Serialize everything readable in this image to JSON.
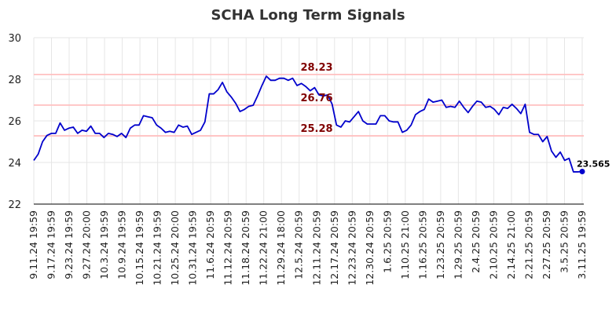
{
  "chart_data": {
    "type": "line",
    "title": "SCHA Long Term Signals",
    "xlabel": "",
    "ylabel": "",
    "ylim": [
      22,
      30
    ],
    "yticks": [
      22,
      24,
      26,
      28,
      30
    ],
    "grid": true,
    "xtick_labels": [
      "9.11.24 19:59",
      "9.17.24 19:59",
      "9.23.24 19:59",
      "9.27.24 20:00",
      "10.3.24 19:59",
      "10.9.24 19:59",
      "10.15.24 19:59",
      "10.21.24 19:59",
      "10.25.24 20:00",
      "10.31.24 19:59",
      "11.6.24 20:59",
      "11.12.24 20:59",
      "11.18.24 20:59",
      "11.22.24 21:00",
      "11.29.24 18:00",
      "12.5.24 20:59",
      "12.11.24 20:59",
      "12.17.24 20:59",
      "12.23.24 20:59",
      "12.30.24 20:59",
      "1.6.25 20:59",
      "1.10.25 21:00",
      "1.16.25 20:59",
      "1.23.25 20:59",
      "1.29.25 20:59",
      "2.4.25 20:59",
      "2.10.25 20:59",
      "2.14.25 21:00",
      "2.21.25 20:59",
      "2.27.25 20:59",
      "3.5.25 20:59",
      "3.11.25 19:59"
    ],
    "reference_lines": [
      {
        "value": 28.23,
        "label": "28.23",
        "line_color": "#ffc0c0",
        "label_color": "#800000"
      },
      {
        "value": 26.76,
        "label": "26.76",
        "line_color": "#ffc0c0",
        "label_color": "#800000"
      },
      {
        "value": 25.28,
        "label": "25.28",
        "line_color": "#ffc0c0",
        "label_color": "#800000"
      }
    ],
    "series": [
      {
        "color": "#0000cc",
        "values": [
          24.1,
          24.4,
          25.0,
          25.3,
          25.4,
          25.4,
          25.9,
          25.55,
          25.65,
          25.7,
          25.4,
          25.55,
          25.5,
          25.75,
          25.4,
          25.4,
          25.2,
          25.4,
          25.35,
          25.25,
          25.4,
          25.2,
          25.65,
          25.8,
          25.8,
          26.25,
          26.2,
          26.15,
          25.8,
          25.65,
          25.45,
          25.5,
          25.45,
          25.8,
          25.7,
          25.75,
          25.35,
          25.45,
          25.55,
          25.95,
          27.3,
          27.3,
          27.5,
          27.85,
          27.4,
          27.15,
          26.85,
          26.45,
          26.55,
          26.7,
          26.75,
          27.2,
          27.7,
          28.15,
          27.95,
          27.95,
          28.05,
          28.05,
          27.95,
          28.05,
          27.7,
          27.8,
          27.65,
          27.45,
          27.6,
          27.25,
          27.2,
          27.25,
          26.8,
          25.8,
          25.7,
          26.0,
          25.95,
          26.2,
          26.45,
          26.0,
          25.85,
          25.85,
          25.85,
          26.25,
          26.25,
          26.0,
          25.95,
          25.95,
          25.45,
          25.55,
          25.8,
          26.3,
          26.45,
          26.55,
          27.05,
          26.9,
          26.95,
          27.0,
          26.65,
          26.7,
          26.65,
          26.95,
          26.65,
          26.4,
          26.7,
          26.95,
          26.9,
          26.65,
          26.7,
          26.55,
          26.3,
          26.65,
          26.6,
          26.8,
          26.6,
          26.35,
          26.8,
          25.45,
          25.35,
          25.35,
          25.0,
          25.25,
          24.55,
          24.25,
          24.5,
          24.1,
          24.2,
          23.55,
          23.55,
          23.565
        ],
        "last_value_label": "23.565"
      }
    ]
  }
}
